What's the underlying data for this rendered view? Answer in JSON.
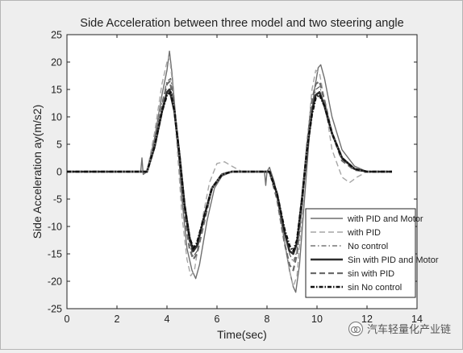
{
  "chart_data": {
    "type": "line",
    "title": "Side Acceleration between three model and two steering angle",
    "xlabel": "Time(sec)",
    "ylabel": "Side Acceleration ay(m/s2)",
    "xlim": [
      0,
      14
    ],
    "ylim": [
      -25,
      25
    ],
    "x_ticks": [
      0,
      2,
      4,
      6,
      8,
      10,
      12,
      14
    ],
    "y_ticks": [
      -25,
      -20,
      -15,
      -10,
      -5,
      0,
      5,
      10,
      15,
      20,
      25
    ],
    "grid": false,
    "legend_position": "bottom-right",
    "series": [
      {
        "name": "with PID and Motor",
        "style": "solid-thin",
        "color": "#6f6f6f",
        "points": [
          [
            0,
            0
          ],
          [
            2.95,
            0
          ],
          [
            3.0,
            2.5
          ],
          [
            3.05,
            -0.5
          ],
          [
            3.2,
            0
          ],
          [
            3.5,
            6
          ],
          [
            3.8,
            14
          ],
          [
            4.0,
            18.5
          ],
          [
            4.1,
            22
          ],
          [
            4.2,
            18
          ],
          [
            4.4,
            7
          ],
          [
            4.6,
            -5
          ],
          [
            4.8,
            -14
          ],
          [
            5.0,
            -18
          ],
          [
            5.15,
            -19.5
          ],
          [
            5.3,
            -17
          ],
          [
            5.6,
            -9
          ],
          [
            5.9,
            -3
          ],
          [
            6.2,
            -0.8
          ],
          [
            6.6,
            0
          ],
          [
            7.9,
            0
          ],
          [
            7.95,
            -2.5
          ],
          [
            8.0,
            0
          ],
          [
            8.1,
            0.8
          ],
          [
            8.3,
            -2
          ],
          [
            8.6,
            -10
          ],
          [
            8.9,
            -18
          ],
          [
            9.05,
            -21
          ],
          [
            9.15,
            -22
          ],
          [
            9.3,
            -17
          ],
          [
            9.5,
            -5
          ],
          [
            9.7,
            7
          ],
          [
            9.9,
            15
          ],
          [
            10.05,
            19
          ],
          [
            10.15,
            19.5
          ],
          [
            10.3,
            17
          ],
          [
            10.6,
            10
          ],
          [
            11.0,
            4
          ],
          [
            11.5,
            1
          ],
          [
            12.0,
            0
          ],
          [
            13.0,
            0
          ]
        ]
      },
      {
        "name": "with PID",
        "style": "dashed-thin",
        "color": "#a6a6a6",
        "points": [
          [
            0,
            0
          ],
          [
            3.0,
            0
          ],
          [
            3.2,
            0
          ],
          [
            3.5,
            7
          ],
          [
            3.8,
            16
          ],
          [
            4.0,
            20
          ],
          [
            4.1,
            21
          ],
          [
            4.2,
            17
          ],
          [
            4.4,
            5
          ],
          [
            4.6,
            -8
          ],
          [
            4.8,
            -16
          ],
          [
            4.95,
            -19
          ],
          [
            5.1,
            -18
          ],
          [
            5.4,
            -9
          ],
          [
            5.7,
            -2
          ],
          [
            6.0,
            1.5
          ],
          [
            6.3,
            1.8
          ],
          [
            6.6,
            1
          ],
          [
            7.0,
            0
          ],
          [
            8.0,
            0
          ],
          [
            8.1,
            0
          ],
          [
            8.4,
            -4
          ],
          [
            8.7,
            -13
          ],
          [
            8.9,
            -18
          ],
          [
            9.05,
            -21
          ],
          [
            9.2,
            -19
          ],
          [
            9.4,
            -8
          ],
          [
            9.6,
            5
          ],
          [
            9.8,
            15
          ],
          [
            9.95,
            18.5
          ],
          [
            10.1,
            18
          ],
          [
            10.3,
            13
          ],
          [
            10.6,
            4
          ],
          [
            11.0,
            -1
          ],
          [
            11.3,
            -2
          ],
          [
            11.6,
            -1
          ],
          [
            12.0,
            0
          ],
          [
            13.0,
            0
          ]
        ]
      },
      {
        "name": "No control",
        "style": "dashdot-thin",
        "color": "#5a5a5a",
        "points": [
          [
            0,
            0
          ],
          [
            3.0,
            0
          ],
          [
            3.2,
            0
          ],
          [
            3.5,
            5
          ],
          [
            3.8,
            12.5
          ],
          [
            4.0,
            16.5
          ],
          [
            4.15,
            17
          ],
          [
            4.3,
            12
          ],
          [
            4.5,
            3
          ],
          [
            4.7,
            -7
          ],
          [
            4.9,
            -13
          ],
          [
            5.05,
            -15.5
          ],
          [
            5.2,
            -14.5
          ],
          [
            5.5,
            -8
          ],
          [
            5.8,
            -3
          ],
          [
            6.2,
            -0.5
          ],
          [
            6.6,
            0
          ],
          [
            8.0,
            0
          ],
          [
            8.1,
            0
          ],
          [
            8.4,
            -4
          ],
          [
            8.7,
            -11
          ],
          [
            8.9,
            -15
          ],
          [
            9.05,
            -16.5
          ],
          [
            9.2,
            -14.5
          ],
          [
            9.4,
            -6
          ],
          [
            9.6,
            4
          ],
          [
            9.8,
            12
          ],
          [
            9.95,
            15
          ],
          [
            10.1,
            15.5
          ],
          [
            10.3,
            13
          ],
          [
            10.6,
            7
          ],
          [
            11.0,
            2.5
          ],
          [
            11.5,
            0.5
          ],
          [
            12.0,
            0
          ],
          [
            13.0,
            0
          ]
        ]
      },
      {
        "name": "Sin with PID and Motor",
        "style": "solid-thick",
        "color": "#2e2e2e",
        "points": [
          [
            0,
            0
          ],
          [
            3.0,
            0
          ],
          [
            3.2,
            0
          ],
          [
            3.5,
            4.5
          ],
          [
            3.8,
            11
          ],
          [
            4.0,
            14.5
          ],
          [
            4.1,
            15
          ],
          [
            4.3,
            11
          ],
          [
            4.5,
            3
          ],
          [
            4.7,
            -6
          ],
          [
            4.9,
            -12
          ],
          [
            5.05,
            -14.5
          ],
          [
            5.2,
            -13.5
          ],
          [
            5.5,
            -8
          ],
          [
            5.8,
            -3
          ],
          [
            6.2,
            -0.5
          ],
          [
            6.6,
            0
          ],
          [
            8.0,
            0
          ],
          [
            8.1,
            0
          ],
          [
            8.4,
            -4
          ],
          [
            8.7,
            -11
          ],
          [
            8.9,
            -14.5
          ],
          [
            9.05,
            -15
          ],
          [
            9.2,
            -13
          ],
          [
            9.4,
            -5
          ],
          [
            9.6,
            4
          ],
          [
            9.8,
            11
          ],
          [
            9.95,
            14
          ],
          [
            10.1,
            14.5
          ],
          [
            10.3,
            12
          ],
          [
            10.6,
            7
          ],
          [
            11.0,
            2.5
          ],
          [
            11.5,
            0.5
          ],
          [
            12.0,
            0
          ],
          [
            13.0,
            0
          ]
        ]
      },
      {
        "name": "sin with PID",
        "style": "dashed-thick",
        "color": "#6b6b6b",
        "points": [
          [
            0,
            0
          ],
          [
            3.0,
            0
          ],
          [
            3.2,
            0
          ],
          [
            3.5,
            5
          ],
          [
            3.8,
            12
          ],
          [
            4.0,
            16
          ],
          [
            4.12,
            16.5
          ],
          [
            4.3,
            11.5
          ],
          [
            4.5,
            2
          ],
          [
            4.7,
            -8
          ],
          [
            4.9,
            -14
          ],
          [
            5.05,
            -16
          ],
          [
            5.2,
            -15
          ],
          [
            5.5,
            -9
          ],
          [
            5.8,
            -3
          ],
          [
            6.2,
            -0.5
          ],
          [
            6.6,
            0
          ],
          [
            8.0,
            0
          ],
          [
            8.1,
            0
          ],
          [
            8.4,
            -5
          ],
          [
            8.7,
            -13
          ],
          [
            8.9,
            -17
          ],
          [
            9.05,
            -18
          ],
          [
            9.2,
            -15
          ],
          [
            9.4,
            -6
          ],
          [
            9.6,
            5
          ],
          [
            9.8,
            13
          ],
          [
            9.95,
            16
          ],
          [
            10.1,
            16.5
          ],
          [
            10.3,
            13
          ],
          [
            10.6,
            7
          ],
          [
            11.0,
            2
          ],
          [
            11.5,
            0.3
          ],
          [
            12.0,
            0
          ],
          [
            13.0,
            0
          ]
        ]
      },
      {
        "name": "sin No control",
        "style": "dashdot-thick",
        "color": "#111111",
        "points": [
          [
            0,
            0
          ],
          [
            3.0,
            0
          ],
          [
            3.2,
            0
          ],
          [
            3.5,
            4.5
          ],
          [
            3.8,
            11
          ],
          [
            4.0,
            14
          ],
          [
            4.15,
            14.5
          ],
          [
            4.3,
            11
          ],
          [
            4.5,
            3
          ],
          [
            4.7,
            -6
          ],
          [
            4.9,
            -12
          ],
          [
            5.05,
            -14
          ],
          [
            5.2,
            -13
          ],
          [
            5.5,
            -8
          ],
          [
            5.8,
            -3
          ],
          [
            6.2,
            -0.5
          ],
          [
            6.6,
            0
          ],
          [
            8.0,
            0
          ],
          [
            8.1,
            0
          ],
          [
            8.4,
            -4
          ],
          [
            8.7,
            -10.5
          ],
          [
            8.9,
            -13.5
          ],
          [
            9.05,
            -14.5
          ],
          [
            9.2,
            -12.5
          ],
          [
            9.4,
            -5
          ],
          [
            9.6,
            4
          ],
          [
            9.8,
            10.5
          ],
          [
            9.95,
            13.5
          ],
          [
            10.1,
            14
          ],
          [
            10.3,
            12
          ],
          [
            10.6,
            7
          ],
          [
            11.0,
            2.5
          ],
          [
            11.5,
            0.5
          ],
          [
            12.0,
            0
          ],
          [
            13.0,
            0
          ]
        ]
      }
    ]
  },
  "watermark": {
    "text": "汽车轻量化产业链",
    "icon": "wechat-icon"
  }
}
